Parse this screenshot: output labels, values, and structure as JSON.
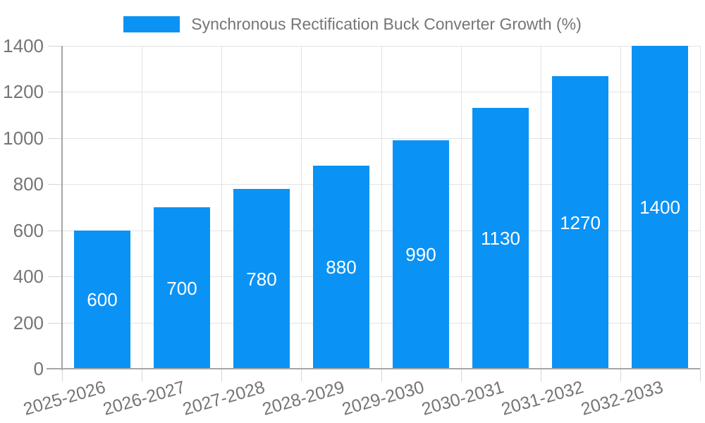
{
  "legend": {
    "label": "Synchronous Rectification Buck Converter Growth (%)"
  },
  "chart_data": {
    "type": "bar",
    "title": "Synchronous Rectification Buck Converter Growth (%)",
    "categories": [
      "2025-2026",
      "2026-2027",
      "2027-2028",
      "2028-2029",
      "2029-2030",
      "2030-2031",
      "2031-2032",
      "2032-2033"
    ],
    "values": [
      600,
      700,
      780,
      880,
      990,
      1130,
      1270,
      1400
    ],
    "bar_value_labels": [
      "600",
      "700",
      "780",
      "880",
      "990",
      "1130",
      "1270",
      "1400"
    ],
    "xlabel": "",
    "ylabel": "",
    "ylim": [
      0,
      1400
    ],
    "ytick_step": 200,
    "ytick_labels": [
      "0",
      "200",
      "400",
      "600",
      "800",
      "1000",
      "1200",
      "1400"
    ],
    "grid": true,
    "legend_position": "top-center",
    "colors": {
      "bar": "#0b92f5",
      "grid": "#e3e3e3",
      "axis": "#a6a6a6",
      "tick": "#d6d6d6",
      "text": "#757575",
      "bar_label": "#ffffff",
      "background": "#ffffff"
    }
  }
}
